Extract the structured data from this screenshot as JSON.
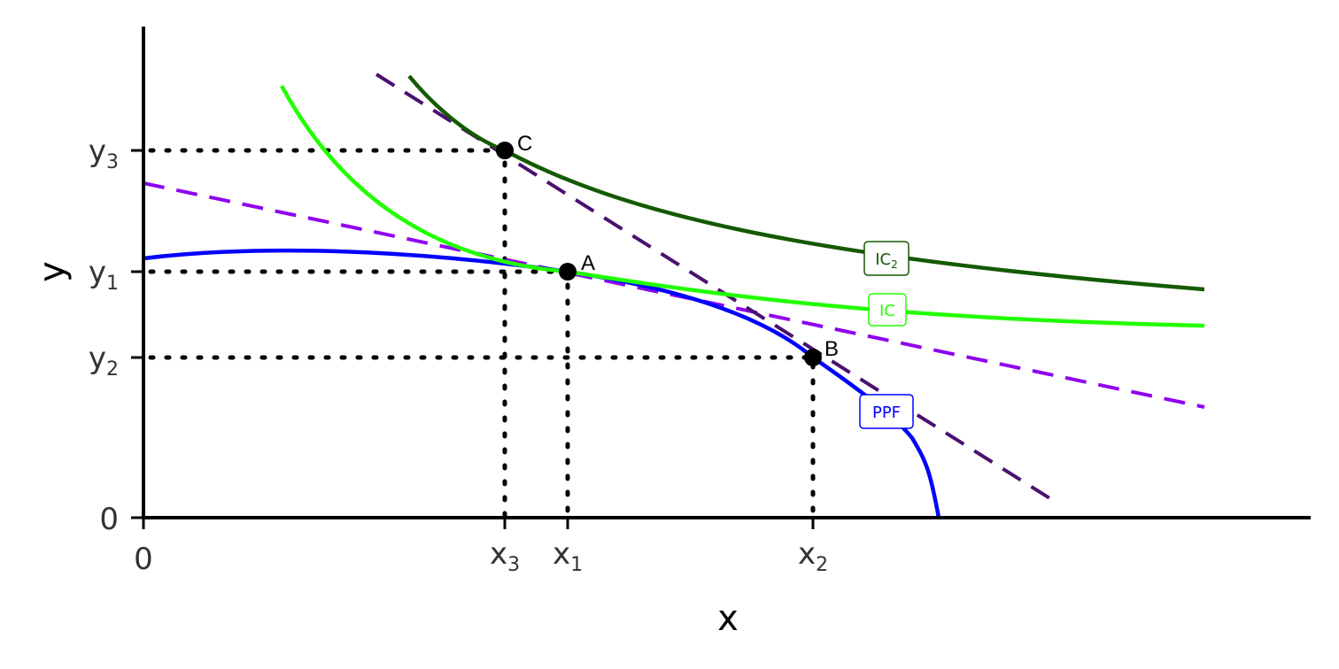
{
  "axes": {
    "x_label": "x",
    "y_label": "y"
  },
  "x_ticks": [
    {
      "main": "0"
    },
    {
      "main": "x",
      "sub": "3"
    },
    {
      "main": "x",
      "sub": "1"
    },
    {
      "main": "x",
      "sub": "2"
    }
  ],
  "y_ticks": [
    {
      "main": "y",
      "sub": "3"
    },
    {
      "main": "y",
      "sub": "1"
    },
    {
      "main": "y",
      "sub": "2"
    },
    {
      "main": "0"
    }
  ],
  "points": [
    "C",
    "A",
    "B"
  ],
  "curves": [
    {
      "main": "IC",
      "sub": "2"
    },
    {
      "main": "IC"
    },
    {
      "main": "PPF"
    }
  ]
}
